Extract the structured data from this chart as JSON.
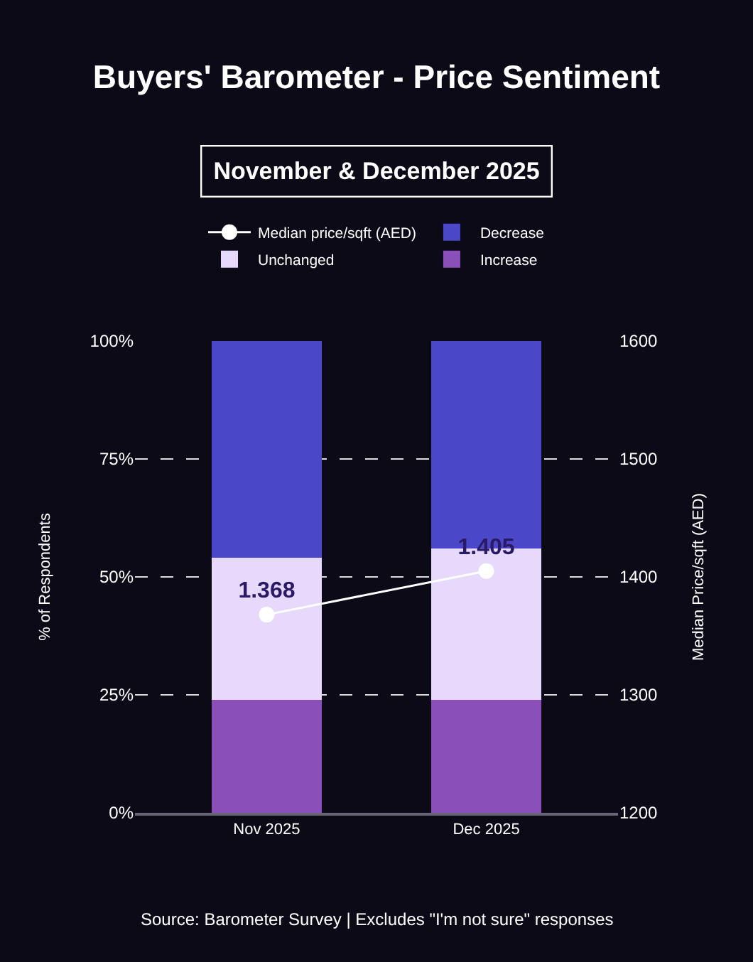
{
  "chart_data": {
    "type": "bar",
    "title": "Buyers' Barometer - Price Sentiment",
    "subtitle": "November & December 2025",
    "categories": [
      "Nov 2025",
      "Dec 2025"
    ],
    "stacked": true,
    "series": [
      {
        "name": "Increase",
        "color": "#8a4fb8",
        "values": [
          24,
          24
        ]
      },
      {
        "name": "Unchanged",
        "color": "#e6d9fb",
        "values": [
          30,
          32
        ]
      },
      {
        "name": "Decrease",
        "color": "#4a47c8",
        "values": [
          46,
          44
        ]
      },
      {
        "name": "Median price/sqft (AED)",
        "type": "line",
        "axis": "y2",
        "color": "#ffffff",
        "marker": "circle",
        "values": [
          1368,
          1405
        ],
        "value_labels": [
          "1.368",
          "1.405"
        ]
      }
    ],
    "ylabel": "% of Respondents",
    "y2label": "Median Price/sqft (AED)",
    "ylim": [
      0,
      100
    ],
    "yticks": [
      {
        "value": 0,
        "label": "0%"
      },
      {
        "value": 25,
        "label": "25%"
      },
      {
        "value": 50,
        "label": "50%"
      },
      {
        "value": 75,
        "label": "75%"
      },
      {
        "value": 100,
        "label": "100%"
      }
    ],
    "y2lim": [
      1200,
      1600
    ],
    "y2ticks": [
      1200,
      1300,
      1400,
      1500,
      1600
    ],
    "grid": "y",
    "legend": "top",
    "annotations": [
      "Source: Barometer Survey | Excludes \"I'm not sure\" responses"
    ]
  }
}
